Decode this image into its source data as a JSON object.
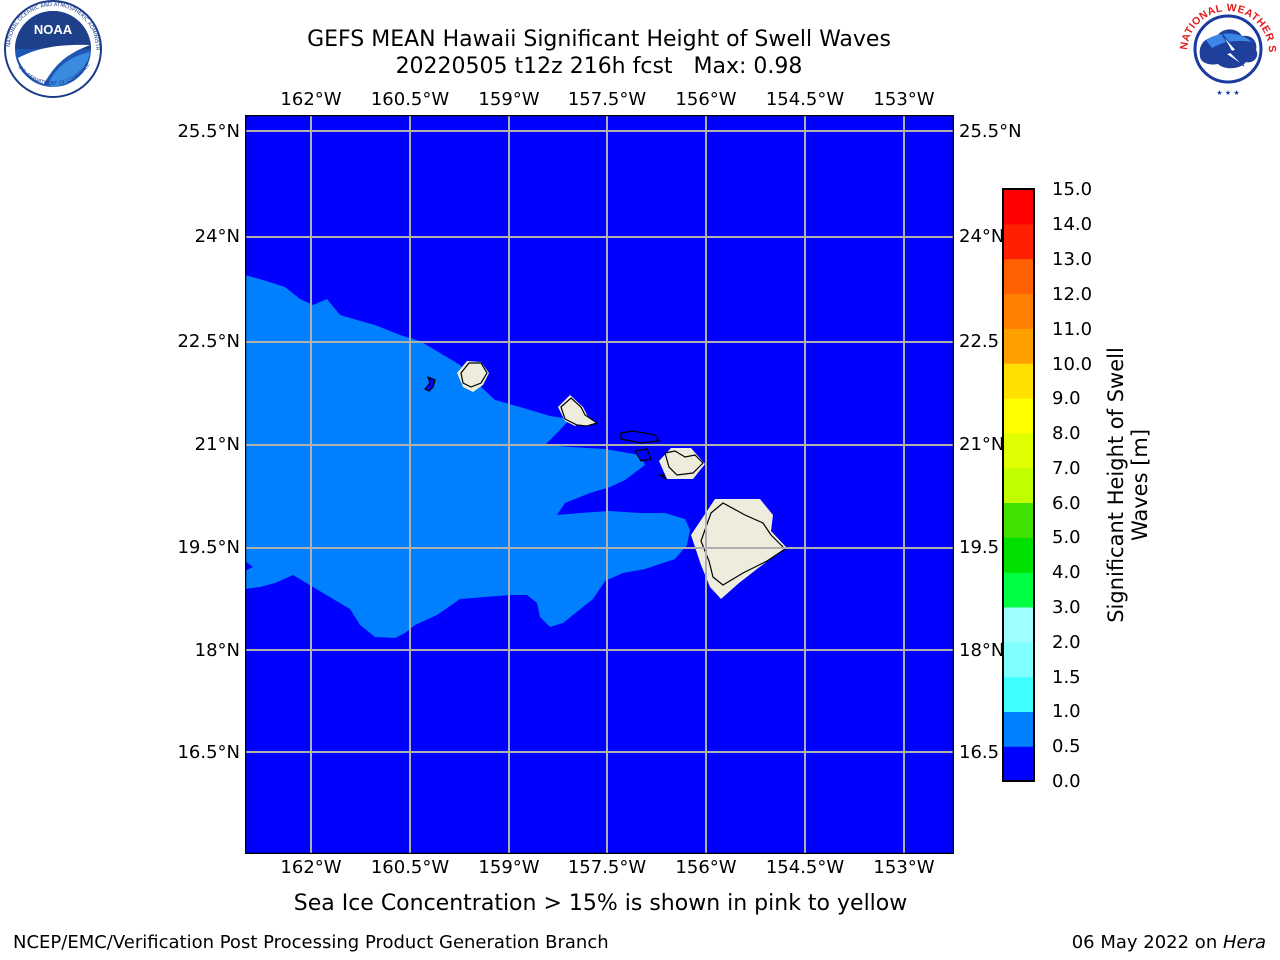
{
  "title": {
    "line1": "GEFS MEAN Hawaii Significant Height of Swell Waves",
    "run": "20220505 t12z 216h fcst",
    "max": "Max: 0.98"
  },
  "logos": {
    "left": {
      "name": "noaa-logo",
      "text": "NOAA",
      "ring_text": "NATIONAL OCEANIC AND ATMOSPHERIC ADMINISTRATION · U.S. DEPARTMENT OF COMMERCE"
    },
    "right": {
      "name": "nws-logo",
      "ring_text": "NATIONAL WEATHER SERVICE"
    }
  },
  "map": {
    "lon_labels": [
      "162°W",
      "160.5°W",
      "159°W",
      "157.5°W",
      "156°W",
      "154.5°W",
      "153°W"
    ],
    "lat_labels": [
      "25.5°N",
      "24°N",
      "22.5°N",
      "21°N",
      "19.5°N",
      "18°N",
      "16.5°N"
    ],
    "lat_labels_right": [
      "25.5°N",
      "24°N",
      "22.5",
      "21°N",
      "19.5",
      "18°N",
      "16.5"
    ],
    "colors": {
      "ocean_0_0_5": "#0000ff",
      "swell_0_5_1_0": "#0080ff",
      "land": "#eeecdc",
      "grid": "#b0b0b0"
    }
  },
  "colorbar": {
    "label": "Significant Height of Swell Waves [m]",
    "label_line1": "Significant Height of Swell",
    "label_line2": "Waves [m]",
    "ticks": [
      "15.0",
      "14.0",
      "13.0",
      "12.0",
      "11.0",
      "10.0",
      "9.0",
      "8.0",
      "7.0",
      "6.0",
      "5.0",
      "4.0",
      "3.0",
      "2.0",
      "1.5",
      "1.0",
      "0.5",
      "0.0"
    ],
    "colors_bottom_to_top": [
      "#0000ff",
      "#0080ff",
      "#00ffff",
      "#40ffff",
      "#80ffff",
      "#a0ffff",
      "#40ff80",
      "#00ff40",
      "#00e000",
      "#40e000",
      "#80ff00",
      "#c0ff00",
      "#e0ff00",
      "#ffff00",
      "#ffe000",
      "#ffc000",
      "#ffa000",
      "#ff8000",
      "#ff6000",
      "#ff4000",
      "#ff2000",
      "#ff0000"
    ]
  },
  "caption": "Sea Ice Concentration > 15% is shown in pink to yellow",
  "footer": {
    "left": "NCEP/EMC/Verification Post Processing Product Generation Branch",
    "date": "06 May 2022 on ",
    "host": "Hera"
  }
}
